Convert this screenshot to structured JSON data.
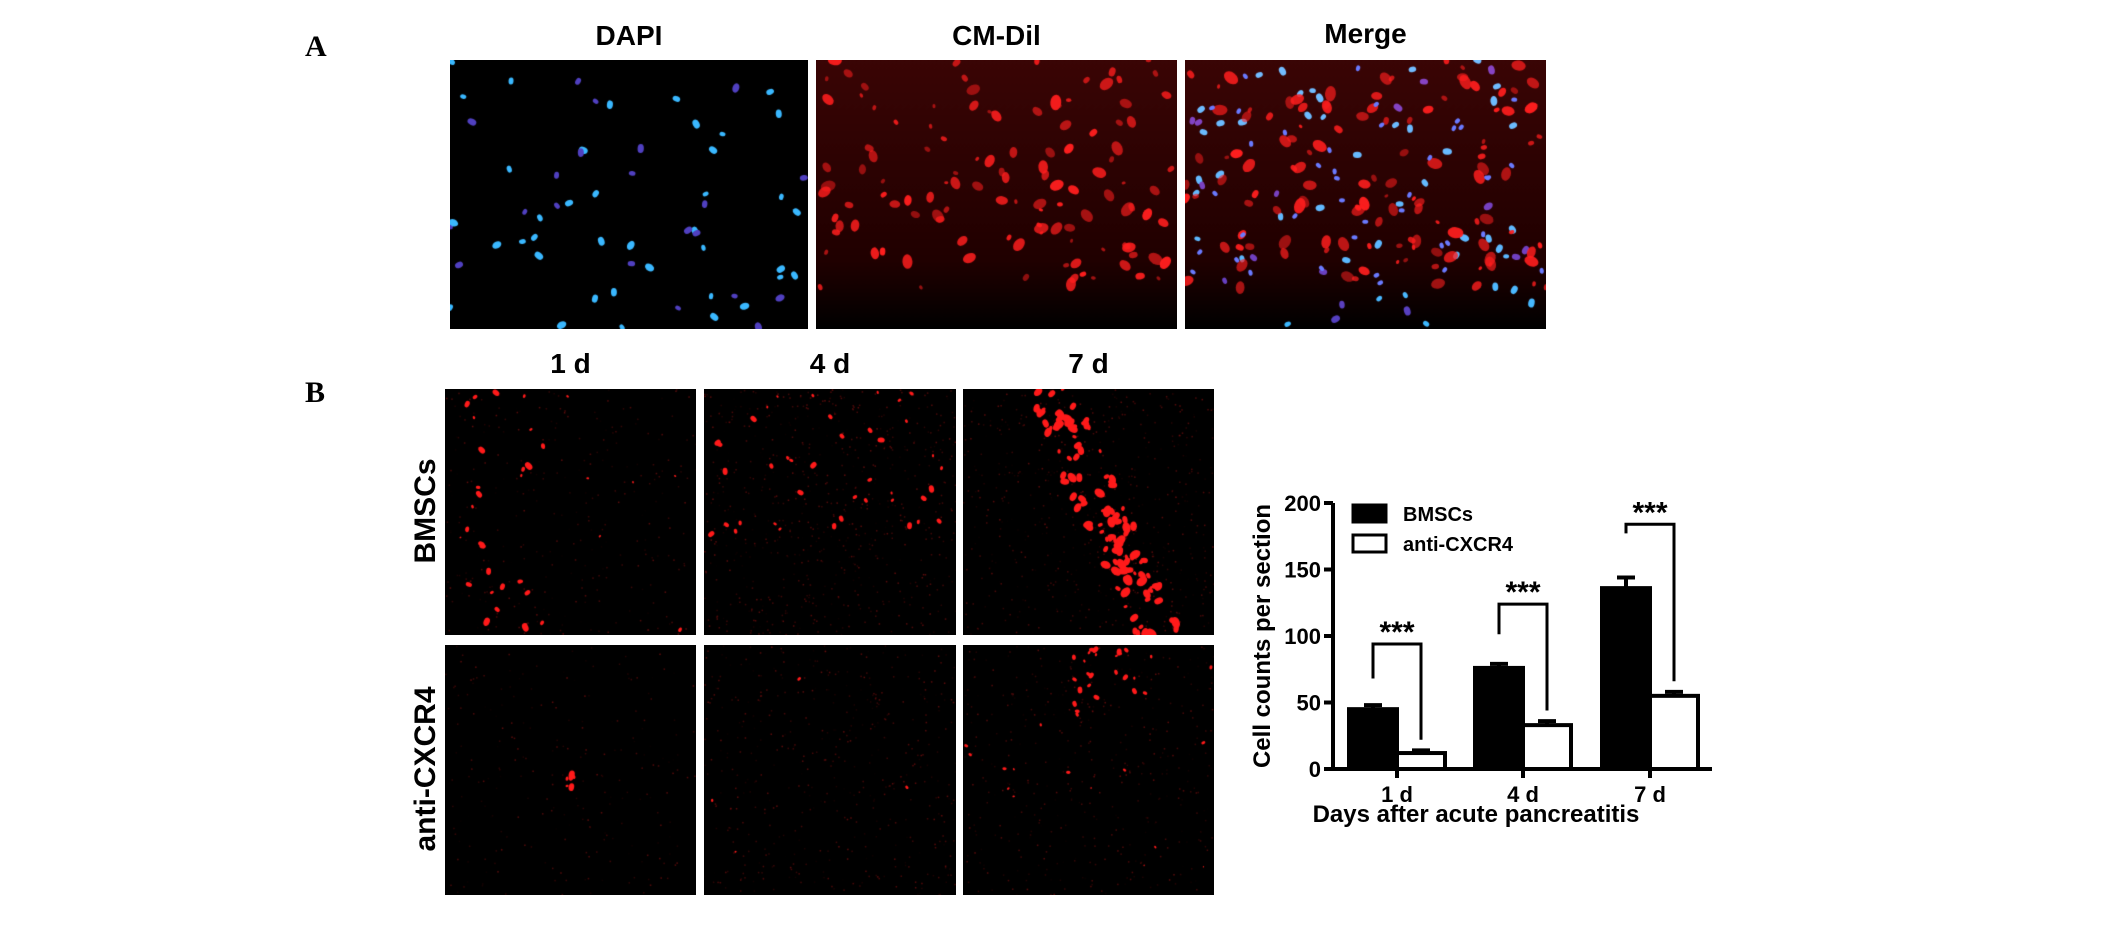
{
  "panels": {
    "a": {
      "label": "A",
      "images": [
        {
          "title": "DAPI",
          "stain": "blue"
        },
        {
          "title": "CM-Dil",
          "stain": "red"
        },
        {
          "title": "Merge",
          "stain": "merge"
        }
      ]
    },
    "b": {
      "label": "B",
      "columns": [
        "1 d",
        "4 d",
        "7 d"
      ],
      "rows": [
        "BMSCs",
        "anti-CXCR4"
      ]
    }
  },
  "colors": {
    "bmsc": "#000000",
    "anti": "#ffffff",
    "red_stain": "#ff2020",
    "blue_stain": "#33aaff"
  },
  "chart_data": {
    "type": "bar",
    "title": "",
    "xlabel": "Days after acute pancreatitis",
    "ylabel": "Cell counts per section",
    "categories": [
      "1 d",
      "4 d",
      "7 d"
    ],
    "ylim": [
      0,
      200
    ],
    "yticks": [
      0,
      50,
      100,
      150,
      200
    ],
    "legend": "top-left",
    "grid": false,
    "series": [
      {
        "name": "BMSCs",
        "values": [
          45,
          76,
          136
        ],
        "errors": [
          3,
          3,
          8
        ],
        "fill": "#000000"
      },
      {
        "name": "anti-CXCR4",
        "values": [
          12,
          33,
          55
        ],
        "errors": [
          2,
          3,
          3
        ],
        "fill": "#ffffff"
      }
    ],
    "annotations": [
      {
        "category": "1 d",
        "text": "***",
        "level": 94
      },
      {
        "category": "4 d",
        "text": "***",
        "level": 124
      },
      {
        "category": "7 d",
        "text": "***",
        "level": 184
      }
    ]
  }
}
